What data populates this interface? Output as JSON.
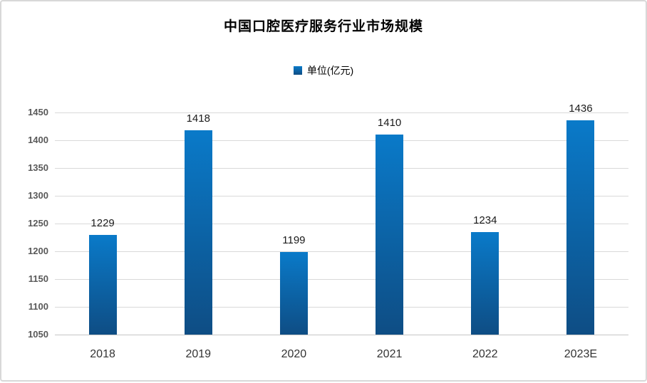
{
  "chart": {
    "title": "中国口腔医疗服务行业市场规模",
    "legend_label": "单位(亿元)"
  },
  "colors": {
    "bar_top": "#0a7ac9",
    "bar_bottom": "#0e4d84",
    "gridline": "#d9d9d9",
    "axis_line": "#c6c6c6",
    "y_tick_text": "#595959",
    "x_tick_text": "#333333",
    "value_label_text": "#1a1a1a",
    "title_text": "#000000"
  },
  "chart_data": {
    "type": "bar",
    "title": "中国口腔医疗服务行业市场规模",
    "series_name": "单位(亿元)",
    "categories": [
      "2018",
      "2019",
      "2020",
      "2021",
      "2022",
      "2023E"
    ],
    "values": [
      1229,
      1418,
      1199,
      1410,
      1234,
      1436
    ],
    "xlabel": "",
    "ylabel": "",
    "ylim": [
      1050,
      1450
    ],
    "ytick_step": 50,
    "grid": true,
    "legend_position": "top",
    "data_labels": true
  }
}
